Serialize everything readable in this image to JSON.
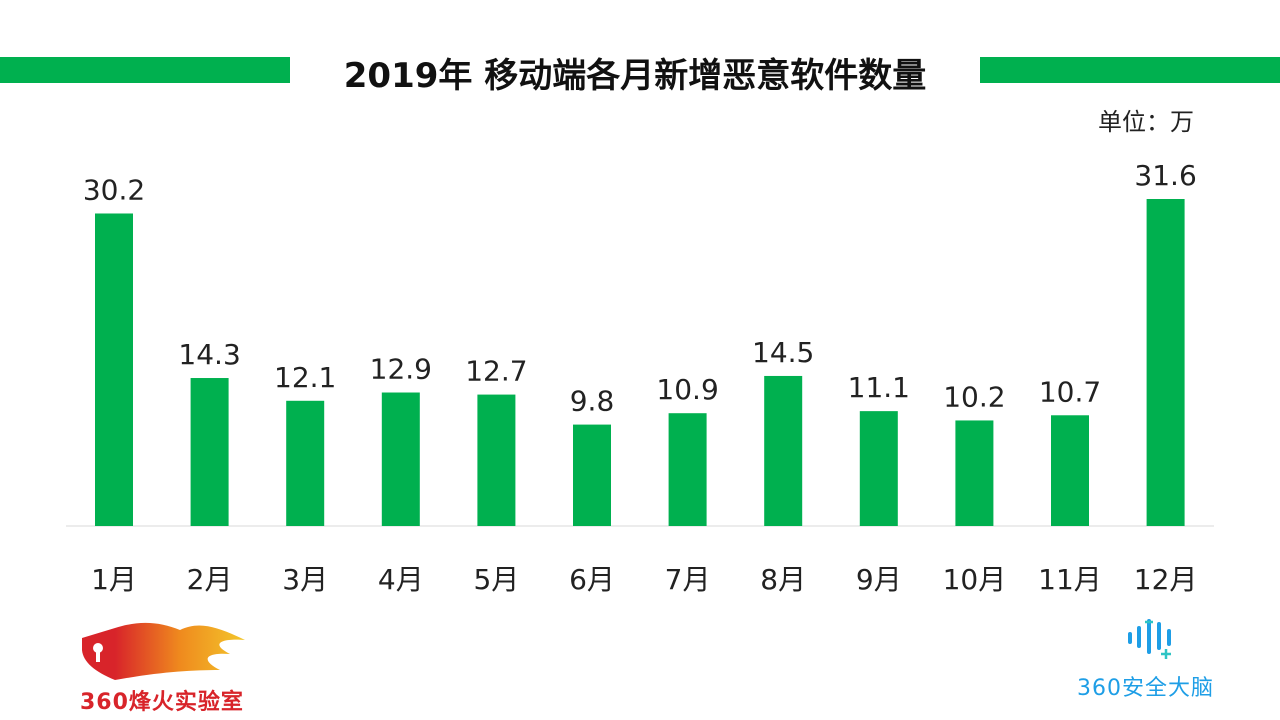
{
  "title": "2019年 移动端各月新增恶意软件数量",
  "unit": "单位：万",
  "colors": {
    "bar": "#00b04f",
    "accent": "#00b04f"
  },
  "logos": {
    "left": "360烽火实验室",
    "right": "360安全大脑"
  },
  "chart_data": {
    "type": "bar",
    "title": "2019年 移动端各月新增恶意软件数量",
    "xlabel": "",
    "ylabel": "单位：万",
    "categories": [
      "1月",
      "2月",
      "3月",
      "4月",
      "5月",
      "6月",
      "7月",
      "8月",
      "9月",
      "10月",
      "11月",
      "12月"
    ],
    "values": [
      30.2,
      14.3,
      12.1,
      12.9,
      12.7,
      9.8,
      10.9,
      14.5,
      11.1,
      10.2,
      10.7,
      31.6
    ],
    "ylim": [
      0,
      31.6
    ],
    "grid": false
  }
}
